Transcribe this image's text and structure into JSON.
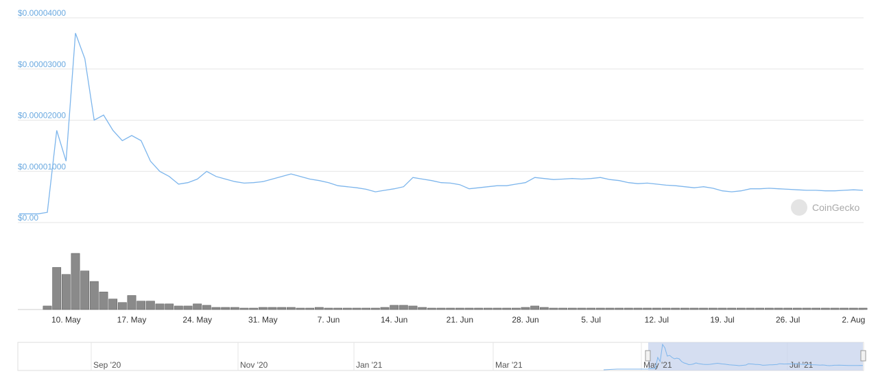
{
  "chart_data": {
    "type": "line",
    "color": "#7cb5ec",
    "volume_color": "#8a8a8a",
    "ylim": [
      0,
      4e-05
    ],
    "yticks": [
      {
        "value": 0,
        "label": "$0.00"
      },
      {
        "value": 1e-05,
        "label": "$0.00001000"
      },
      {
        "value": 2e-05,
        "label": "$0.00002000"
      },
      {
        "value": 3e-05,
        "label": "$0.00003000"
      },
      {
        "value": 4e-05,
        "label": "$0.00004000"
      }
    ],
    "grid": true,
    "watermark": "CoinGecko",
    "categories": [
      null,
      null,
      null,
      null,
      null,
      "10. May",
      null,
      null,
      null,
      null,
      null,
      null,
      "17. May",
      null,
      null,
      null,
      null,
      null,
      null,
      "24. May",
      null,
      null,
      null,
      null,
      null,
      null,
      "31. May",
      null,
      null,
      null,
      null,
      null,
      null,
      "7. Jun",
      null,
      null,
      null,
      null,
      null,
      null,
      "14. Jun",
      null,
      null,
      null,
      null,
      null,
      null,
      "21. Jun",
      null,
      null,
      null,
      null,
      null,
      null,
      "28. Jun",
      null,
      null,
      null,
      null,
      null,
      null,
      "5. Jul",
      null,
      null,
      null,
      null,
      null,
      null,
      "12. Jul",
      null,
      null,
      null,
      null,
      null,
      null,
      "19. Jul",
      null,
      null,
      null,
      null,
      null,
      null,
      "26. Jul",
      null,
      null,
      null,
      null,
      null,
      null,
      "2. Aug",
      null
    ],
    "values": [
      1.7e-06,
      1.7e-06,
      1.7e-06,
      2e-06,
      1.8e-05,
      1.2e-05,
      3.7e-05,
      3.2e-05,
      2e-05,
      2.1e-05,
      1.8e-05,
      1.6e-05,
      1.7e-05,
      1.6e-05,
      1.2e-05,
      1e-05,
      9e-06,
      7.5e-06,
      7.8e-06,
      8.5e-06,
      1e-05,
      9e-06,
      8.5e-06,
      8e-06,
      7.7e-06,
      7.8e-06,
      8e-06,
      8.5e-06,
      9e-06,
      9.5e-06,
      9e-06,
      8.5e-06,
      8.2e-06,
      7.8e-06,
      7.2e-06,
      7e-06,
      6.8e-06,
      6.5e-06,
      6e-06,
      6.3e-06,
      6.6e-06,
      7e-06,
      8.8e-06,
      8.5e-06,
      8.2e-06,
      7.8e-06,
      7.7e-06,
      7.4e-06,
      6.6e-06,
      6.8e-06,
      7e-06,
      7.2e-06,
      7.2e-06,
      7.5e-06,
      7.8e-06,
      8.8e-06,
      8.6e-06,
      8.4e-06,
      8.5e-06,
      8.6e-06,
      8.5e-06,
      8.6e-06,
      8.8e-06,
      8.4e-06,
      8.2e-06,
      7.8e-06,
      7.6e-06,
      7.7e-06,
      7.5e-06,
      7.3e-06,
      7.2e-06,
      7e-06,
      6.8e-06,
      7e-06,
      6.7e-06,
      6.2e-06,
      6e-06,
      6.2e-06,
      6.6e-06,
      6.6e-06,
      6.7e-06,
      6.6e-06,
      6.5e-06,
      6.4e-06,
      6.3e-06,
      6.3e-06,
      6.2e-06,
      6.2e-06,
      6.3e-06,
      6.4e-06,
      6.3e-06
    ],
    "volume": [
      0,
      0,
      0,
      5,
      60,
      50,
      80,
      55,
      40,
      25,
      15,
      10,
      20,
      12,
      12,
      8,
      8,
      5,
      5,
      8,
      6,
      3,
      3,
      3,
      2,
      2,
      3,
      3,
      3,
      3,
      2,
      2,
      3,
      2,
      2,
      2,
      2,
      2,
      2,
      3,
      6,
      6,
      5,
      3,
      2,
      2,
      2,
      2,
      2,
      2,
      2,
      2,
      2,
      2,
      3,
      5,
      3,
      2,
      2,
      2,
      2,
      2,
      2,
      2,
      2,
      2,
      2,
      2,
      2,
      2,
      2,
      2,
      2,
      2,
      2,
      2,
      2,
      2,
      2,
      2,
      2,
      2,
      2,
      2,
      2,
      2,
      2,
      2,
      2,
      2,
      2
    ],
    "navigator_labels": [
      "Sep '20",
      "Nov '20",
      "Jan '21",
      "Mar '21",
      "May '21",
      "Jul '21"
    ]
  }
}
